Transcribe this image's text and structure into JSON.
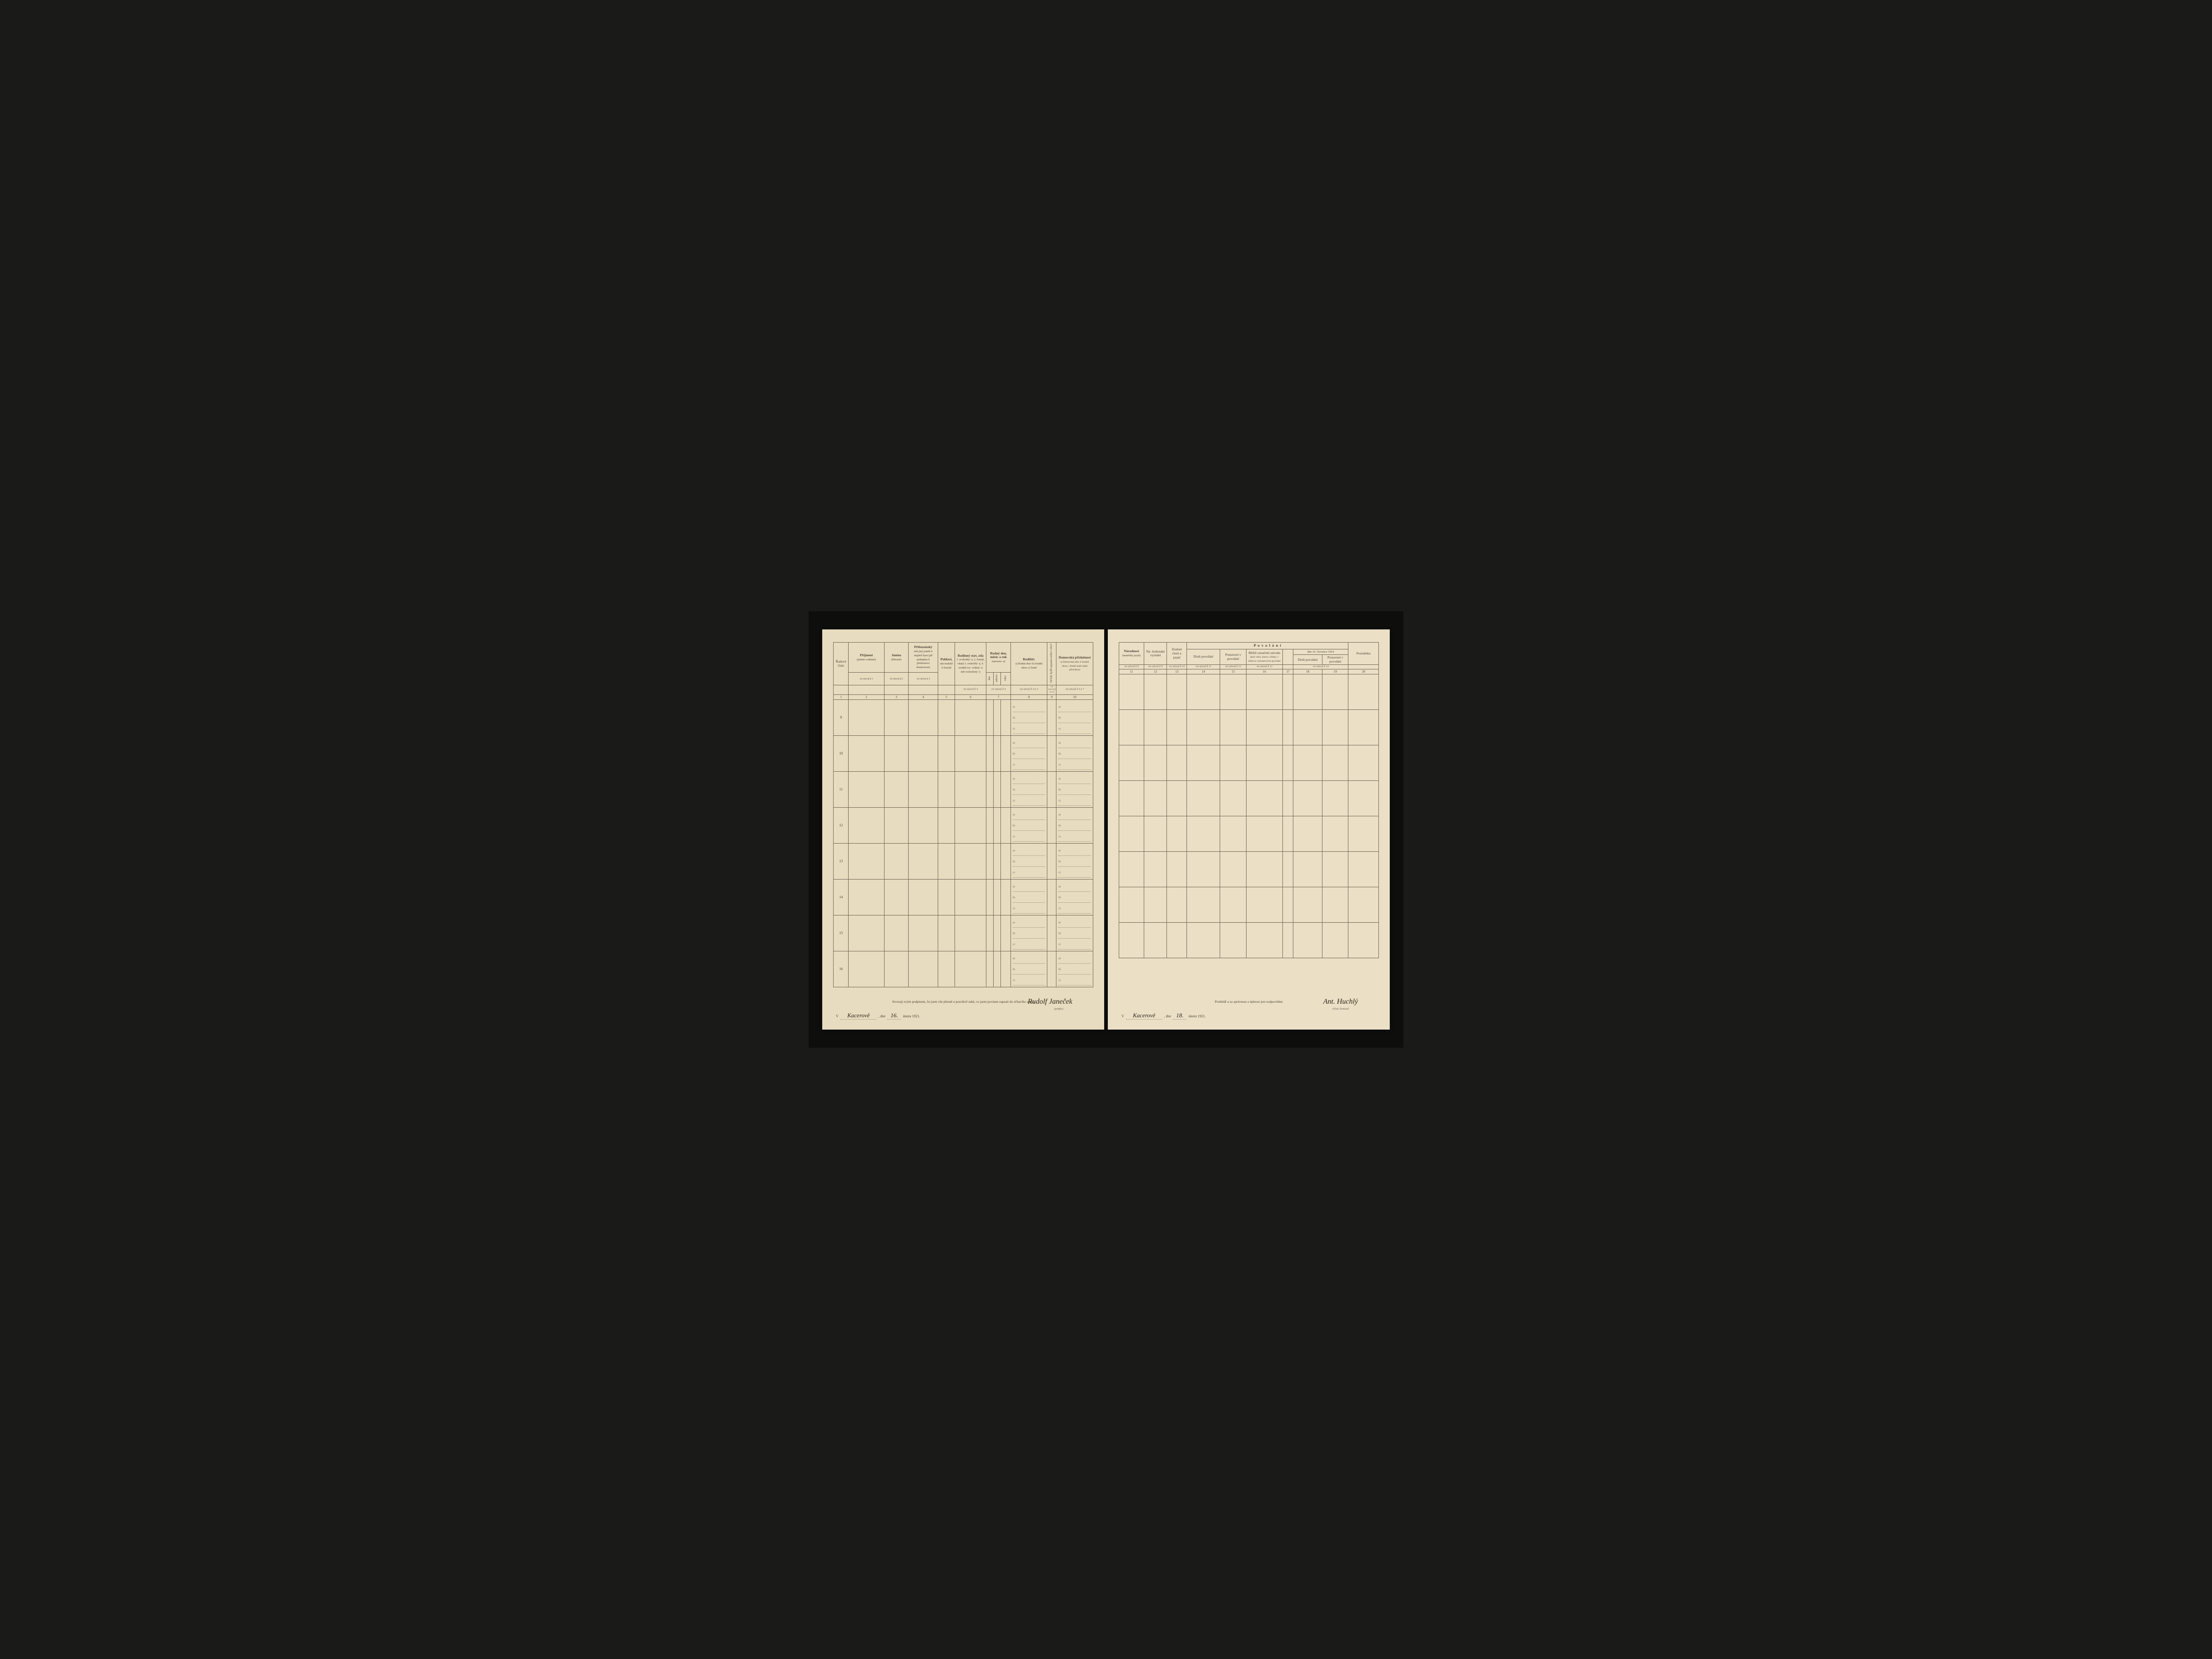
{
  "paper_bg_left": "#e8dcc0",
  "paper_bg_right": "#ebe0c6",
  "ink_color": "#4a4436",
  "hand_ink": "#2a2518",
  "border_color": "#6b6352",
  "left": {
    "headers": {
      "col1": "Řadové číslo",
      "col2_main": "Příjmení",
      "col2_sub": "(jméno rodinné)",
      "col3_main": "Jméno",
      "col3_sub": "(křestní)",
      "col4_main": "Příbuzenský",
      "col4_sub": "neb jiný poměr k majiteli bytu (při podnájmu k přednostovi domácnosti)",
      "col5_main": "Pohlaví,",
      "col5_sub": "zda mužské či ženské",
      "col6_main": "Rodinný stav, zda",
      "col6_sub": "1. svobodný -á, 2. ženatý, vdaná 3. ovdovělý -á, 4. soudně roz- vedený -á neb rozloučený -á",
      "col7_main": "Rodný den, měsíc a rok",
      "col7_sub": "(narozen -a)",
      "col7_a": "dne",
      "col7_b": "měsíce",
      "col7_c": "roku",
      "col8_main": "Rodiště:",
      "col8_sub": "a) Rodná obec b) Soudní okres c) Země",
      "col9": "Od kdy bydlí zapsaná osoba v obci?",
      "col10_main": "Domovská příslušnost",
      "col10_sub": "(a Domovská obec b Soudní okres c Země) aneb státní příslušnost",
      "nav1": "viz návod § 1",
      "nav2": "viz návod § 2",
      "nav3": "viz návod § 3",
      "nav4": "viz návod § 4",
      "nav5": "viz návod § 4 a 5",
      "nav6": "viz návod § 4 a 6",
      "nav7": "viz návod § 4 a 7"
    },
    "col_nums": [
      "1",
      "2",
      "3",
      "4",
      "5",
      "6",
      "7",
      "8",
      "9",
      "10"
    ],
    "row_nums": [
      "9",
      "10",
      "11",
      "12",
      "13",
      "14",
      "15",
      "16"
    ],
    "sublabels": {
      "a": "a)",
      "b": "b)",
      "c": "c)"
    },
    "footer": {
      "attest": "Stvrzuji svým podpisem, že jsem vše přesně a pravdivě udal, co jsem povinen zapsati do sčítacího archu",
      "v": "V",
      "place": "Kacerově",
      "dne": ", dne",
      "day": "16.",
      "month_year": "února 1921.",
      "signature": "Rudolf Janeček",
      "sig_label": "(podpis)"
    }
  },
  "right": {
    "headers": {
      "col11_main": "Národnost",
      "col11_sub": "(mateřský jazyk)",
      "col12_main": "Ná- boženské vyznání",
      "col13_main": "Znalost čtení a psaní",
      "povolani": "P o v o l á n í",
      "col14": "Druh povolání",
      "col15": "Postavení v povolání",
      "col16_main": "Bližší označení závodu",
      "col16_sub": "(pod- niku, ústavu, úřadu), v němž se vykonává toto povolání",
      "col17": "",
      "date_line": "dne 16. července 1914",
      "col18": "Druh povolání",
      "col19": "Postavení v povolání",
      "col20": "Poznámka",
      "nav8": "viz návod § 8",
      "nav9": "viz návod § 9",
      "nav10": "viz návod § 10",
      "nav11": "viz návod § 11",
      "nav12": "viz návod § 12",
      "nav13": "viz návod § 13",
      "nav14": "viz návod § 14"
    },
    "col_nums": [
      "11",
      "12",
      "13",
      "14",
      "15",
      "16",
      "17",
      "18",
      "19",
      "20"
    ],
    "footer": {
      "attest": "Prohlédl a za správnost a úplnost jest zodpověden",
      "v": "V",
      "place": "Kacerově",
      "dne": ", dne",
      "day": "18.",
      "month_year": "února 1921.",
      "signature": "Ant. Huchlý",
      "sig_label": "sčítací komisař"
    }
  }
}
